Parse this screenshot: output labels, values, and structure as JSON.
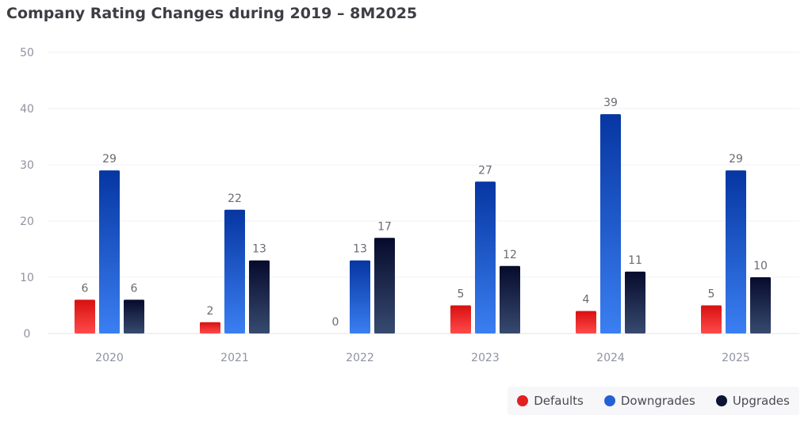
{
  "title": "Company Rating Changes during 2019 – 8M2025",
  "chart_data": {
    "type": "bar",
    "title": "Company Rating Changes during 2019 – 8M2025",
    "xlabel": "",
    "ylabel": "",
    "ylim": [
      0,
      50
    ],
    "yticks": [
      0,
      10,
      20,
      30,
      40,
      50
    ],
    "grid": true,
    "legend_position": "bottom-right",
    "categories": [
      "2020",
      "2021",
      "2022",
      "2023",
      "2024",
      "2025"
    ],
    "series": [
      {
        "name": "Defaults",
        "values": [
          6,
          2,
          0,
          5,
          4,
          5
        ],
        "color_top": "#d81010",
        "color_bottom": "#ff4a4a"
      },
      {
        "name": "Downgrades",
        "values": [
          29,
          22,
          13,
          27,
          39,
          29
        ],
        "color_top": "#0636a2",
        "color_bottom": "#3b7ff2"
      },
      {
        "name": "Upgrades",
        "values": [
          6,
          13,
          17,
          12,
          11,
          10
        ],
        "color_top": "#060b2c",
        "color_bottom": "#374a70"
      }
    ]
  },
  "legend": [
    {
      "label": "Defaults",
      "color": "#e32020"
    },
    {
      "label": "Downgrades",
      "color": "#2561d6"
    },
    {
      "label": "Upgrades",
      "color": "#0d1536"
    }
  ]
}
